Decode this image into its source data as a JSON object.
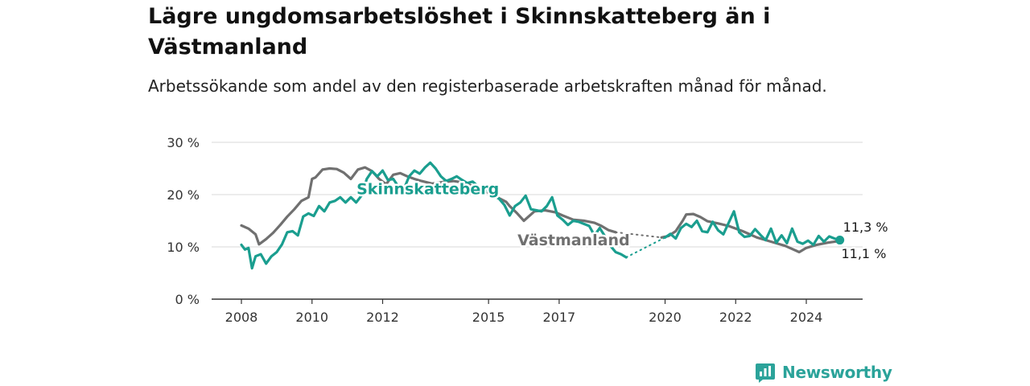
{
  "header": {
    "title": "Lägre ungdomsarbetslöshet i Skinnskatteberg än i Västmanland",
    "subtitle": "Arbetssökande som andel av den registerbaserade arbetskraften månad för månad."
  },
  "brand": {
    "name": "Newsworthy",
    "icon": "newsworthy-logo-icon",
    "color": "#2ba39a"
  },
  "chart_data": {
    "type": "line",
    "title": "Lägre ungdomsarbetslöshet i Skinnskatteberg än i Västmanland",
    "subtitle": "Arbetssökande som andel av den registerbaserade arbetskraften månad för månad.",
    "xlabel": "",
    "ylabel": "",
    "xlim": [
      2008,
      2025
    ],
    "ylim": [
      0,
      30
    ],
    "y_ticks": [
      {
        "value": 0,
        "label": "0 %"
      },
      {
        "value": 10,
        "label": "10 %"
      },
      {
        "value": 20,
        "label": "20 %"
      },
      {
        "value": 30,
        "label": "30 %"
      }
    ],
    "x_ticks": [
      {
        "value": 2008,
        "label": "2008"
      },
      {
        "value": 2010,
        "label": "2010"
      },
      {
        "value": 2012,
        "label": "2012"
      },
      {
        "value": 2015,
        "label": "2015"
      },
      {
        "value": 2017,
        "label": "2017"
      },
      {
        "value": 2020,
        "label": "2020"
      },
      {
        "value": 2022,
        "label": "2022"
      },
      {
        "value": 2024,
        "label": "2024"
      }
    ],
    "grid": true,
    "series": [
      {
        "name": "Västmanland",
        "color": "#707070",
        "end_label": "11,1 %",
        "points": [
          [
            2008.0,
            14.1
          ],
          [
            2008.2,
            13.5
          ],
          [
            2008.4,
            12.4
          ],
          [
            2008.5,
            10.5
          ],
          [
            2008.7,
            11.5
          ],
          [
            2008.9,
            12.7
          ],
          [
            2009.1,
            14.2
          ],
          [
            2009.3,
            15.8
          ],
          [
            2009.5,
            17.2
          ],
          [
            2009.7,
            18.8
          ],
          [
            2009.9,
            19.5
          ],
          [
            2010.0,
            23.0
          ],
          [
            2010.1,
            23.3
          ],
          [
            2010.3,
            24.8
          ],
          [
            2010.5,
            25.0
          ],
          [
            2010.7,
            24.9
          ],
          [
            2010.9,
            24.2
          ],
          [
            2011.1,
            23.0
          ],
          [
            2011.3,
            24.8
          ],
          [
            2011.5,
            25.2
          ],
          [
            2011.7,
            24.5
          ],
          [
            2011.9,
            23.0
          ],
          [
            2012.1,
            22.0
          ],
          [
            2012.3,
            23.8
          ],
          [
            2012.5,
            24.1
          ],
          [
            2012.7,
            23.5
          ],
          [
            2012.9,
            23.0
          ],
          [
            2013.1,
            22.6
          ],
          [
            2013.4,
            22.1
          ],
          [
            2013.7,
            22.4
          ],
          [
            2014.0,
            22.6
          ],
          [
            2014.3,
            22.3
          ],
          [
            2014.6,
            21.5
          ],
          [
            2014.9,
            20.7
          ],
          [
            2015.1,
            20.0
          ],
          [
            2015.3,
            19.3
          ],
          [
            2015.5,
            18.6
          ],
          [
            2015.6,
            17.8
          ],
          [
            2015.8,
            16.5
          ],
          [
            2016.0,
            15.0
          ],
          [
            2016.3,
            16.8
          ],
          [
            2016.6,
            17.0
          ],
          [
            2016.9,
            16.6
          ],
          [
            2017.1,
            16.0
          ],
          [
            2017.4,
            15.2
          ],
          [
            2017.7,
            15.0
          ],
          [
            2018.0,
            14.6
          ],
          [
            2018.2,
            14.0
          ],
          [
            2018.4,
            13.2
          ],
          [
            2018.6,
            12.8
          ]
        ],
        "points_after_gap": [
          [
            2019.9,
            11.8
          ],
          [
            2020.1,
            12.1
          ],
          [
            2020.3,
            13.0
          ],
          [
            2020.5,
            15.0
          ],
          [
            2020.6,
            16.2
          ],
          [
            2020.8,
            16.3
          ],
          [
            2021.0,
            15.7
          ],
          [
            2021.2,
            14.9
          ],
          [
            2021.5,
            14.5
          ],
          [
            2021.8,
            14.0
          ],
          [
            2022.0,
            13.5
          ],
          [
            2022.2,
            13.0
          ],
          [
            2022.4,
            12.4
          ],
          [
            2022.6,
            11.8
          ],
          [
            2022.8,
            11.4
          ],
          [
            2023.0,
            11.0
          ],
          [
            2023.2,
            10.6
          ],
          [
            2023.4,
            10.2
          ],
          [
            2023.6,
            9.6
          ],
          [
            2023.8,
            9.0
          ],
          [
            2024.0,
            9.8
          ],
          [
            2024.3,
            10.4
          ],
          [
            2024.6,
            10.8
          ],
          [
            2024.9,
            11.1
          ]
        ]
      },
      {
        "name": "Skinnskatteberg",
        "color": "#1a9e8f",
        "end_label": "11,3 %",
        "points": [
          [
            2008.0,
            10.4
          ],
          [
            2008.1,
            9.5
          ],
          [
            2008.2,
            9.8
          ],
          [
            2008.3,
            5.9
          ],
          [
            2008.4,
            8.2
          ],
          [
            2008.55,
            8.6
          ],
          [
            2008.7,
            6.8
          ],
          [
            2008.85,
            8.2
          ],
          [
            2009.0,
            9.0
          ],
          [
            2009.15,
            10.5
          ],
          [
            2009.3,
            12.8
          ],
          [
            2009.45,
            13.0
          ],
          [
            2009.6,
            12.2
          ],
          [
            2009.75,
            15.8
          ],
          [
            2009.9,
            16.4
          ],
          [
            2010.05,
            15.9
          ],
          [
            2010.2,
            17.8
          ],
          [
            2010.35,
            16.8
          ],
          [
            2010.5,
            18.5
          ],
          [
            2010.65,
            18.8
          ],
          [
            2010.8,
            19.5
          ],
          [
            2010.95,
            18.5
          ],
          [
            2011.1,
            19.5
          ],
          [
            2011.25,
            18.5
          ],
          [
            2011.4,
            19.8
          ],
          [
            2011.55,
            23.0
          ],
          [
            2011.7,
            24.5
          ],
          [
            2011.85,
            23.5
          ],
          [
            2012.0,
            24.6
          ],
          [
            2012.15,
            22.8
          ],
          [
            2012.3,
            23.0
          ],
          [
            2012.45,
            21.5
          ],
          [
            2012.6,
            21.0
          ],
          [
            2012.75,
            23.5
          ],
          [
            2012.9,
            24.6
          ],
          [
            2013.05,
            24.0
          ],
          [
            2013.2,
            25.2
          ],
          [
            2013.35,
            26.1
          ],
          [
            2013.5,
            25.0
          ],
          [
            2013.65,
            23.5
          ],
          [
            2013.8,
            22.6
          ],
          [
            2013.95,
            23.0
          ],
          [
            2014.1,
            23.5
          ],
          [
            2014.25,
            22.8
          ],
          [
            2014.4,
            22.2
          ],
          [
            2014.55,
            22.5
          ],
          [
            2014.7,
            21.6
          ],
          [
            2014.85,
            21.2
          ],
          [
            2015.0,
            20.6
          ],
          [
            2015.15,
            19.8
          ],
          [
            2015.3,
            19.2
          ],
          [
            2015.45,
            18.0
          ],
          [
            2015.6,
            16.0
          ],
          [
            2015.75,
            17.8
          ],
          [
            2015.9,
            18.5
          ],
          [
            2016.05,
            19.8
          ],
          [
            2016.2,
            17.2
          ],
          [
            2016.35,
            17.0
          ],
          [
            2016.5,
            16.8
          ],
          [
            2016.65,
            17.8
          ],
          [
            2016.8,
            19.5
          ],
          [
            2016.95,
            16.0
          ],
          [
            2017.1,
            15.2
          ],
          [
            2017.25,
            14.2
          ],
          [
            2017.4,
            15.0
          ],
          [
            2017.55,
            14.8
          ],
          [
            2017.7,
            14.4
          ],
          [
            2017.85,
            14.0
          ],
          [
            2018.0,
            12.2
          ],
          [
            2018.15,
            13.6
          ],
          [
            2018.3,
            12.0
          ],
          [
            2018.45,
            10.2
          ],
          [
            2018.6,
            9.0
          ],
          [
            2018.75,
            8.6
          ],
          [
            2018.9,
            8.0
          ]
        ],
        "points_after_gap": [
          [
            2020.0,
            11.8
          ],
          [
            2020.15,
            12.5
          ],
          [
            2020.3,
            11.6
          ],
          [
            2020.45,
            13.6
          ],
          [
            2020.6,
            14.4
          ],
          [
            2020.75,
            13.8
          ],
          [
            2020.9,
            15.0
          ],
          [
            2021.05,
            13.0
          ],
          [
            2021.2,
            12.8
          ],
          [
            2021.35,
            14.8
          ],
          [
            2021.5,
            13.2
          ],
          [
            2021.65,
            12.4
          ],
          [
            2021.8,
            14.6
          ],
          [
            2021.95,
            16.8
          ],
          [
            2022.1,
            12.8
          ],
          [
            2022.25,
            11.9
          ],
          [
            2022.4,
            12.1
          ],
          [
            2022.55,
            13.4
          ],
          [
            2022.7,
            12.3
          ],
          [
            2022.85,
            11.3
          ],
          [
            2023.0,
            13.5
          ],
          [
            2023.15,
            10.8
          ],
          [
            2023.3,
            12.2
          ],
          [
            2023.45,
            10.7
          ],
          [
            2023.6,
            13.5
          ],
          [
            2023.75,
            11.0
          ],
          [
            2023.9,
            10.6
          ],
          [
            2024.05,
            11.2
          ],
          [
            2024.2,
            10.4
          ],
          [
            2024.35,
            12.1
          ],
          [
            2024.5,
            11.0
          ],
          [
            2024.65,
            12.0
          ],
          [
            2024.8,
            11.6
          ],
          [
            2024.95,
            11.3
          ]
        ]
      }
    ],
    "annotations": [
      {
        "text": "Skinnskatteberg",
        "x": 2015.3,
        "y": 20.1,
        "series": "Skinnskatteberg"
      },
      {
        "text": "Västmanland",
        "x": 2019.0,
        "y": 10.3,
        "series": "Västmanland"
      }
    ]
  }
}
